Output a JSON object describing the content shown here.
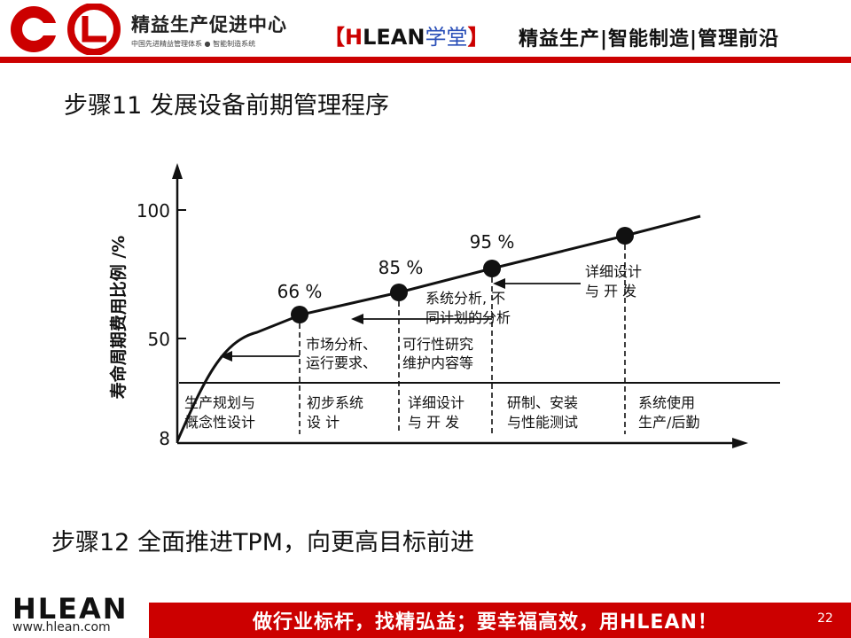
{
  "header": {
    "brand_name": "精益生产促进中心",
    "brand_sub": "中国先进精益管理体系 ● 智能制造系统",
    "tag_open": "【",
    "tag_h": "H",
    "tag_lean": "LEAN",
    "tag_school": "学堂",
    "tag_close": "】",
    "slogan": "精益生产|智能制造|管理前沿"
  },
  "steps": {
    "step11": "步骤11  发展设备前期管理程序",
    "step12": "步骤12  全面推进TPM，向更高目标前进"
  },
  "diagram": {
    "ylabel": "寿命周期费用比例 /%",
    "ticks": [
      "100",
      "50",
      "8"
    ],
    "points": [
      "66 %",
      "85 %",
      "95 %"
    ],
    "notes": {
      "n1a": "市场分析、",
      "n1b": "运行要求、",
      "n2a": "可行性研究",
      "n2b": "维护内容等",
      "n3a": "系统分析, 不",
      "n3b": "同计划的分析",
      "n4a": "详细设计",
      "n4b": "与  开  发"
    },
    "phases": [
      {
        "a": "生产规划与",
        "b": "概念性设计"
      },
      {
        "a": "初步系统",
        "b": "设        计"
      },
      {
        "a": "详细设计",
        "b": "与  开  发"
      },
      {
        "a": "研制、安装",
        "b": "与性能测试"
      },
      {
        "a": "系统使用",
        "b": "生产/后勤"
      }
    ]
  },
  "footer": {
    "logo": "HLEAN",
    "url": "www.hlean.com",
    "motto": "做行业标杆，找精弘益；要幸福高效，用HLEAN！",
    "page": "22"
  }
}
